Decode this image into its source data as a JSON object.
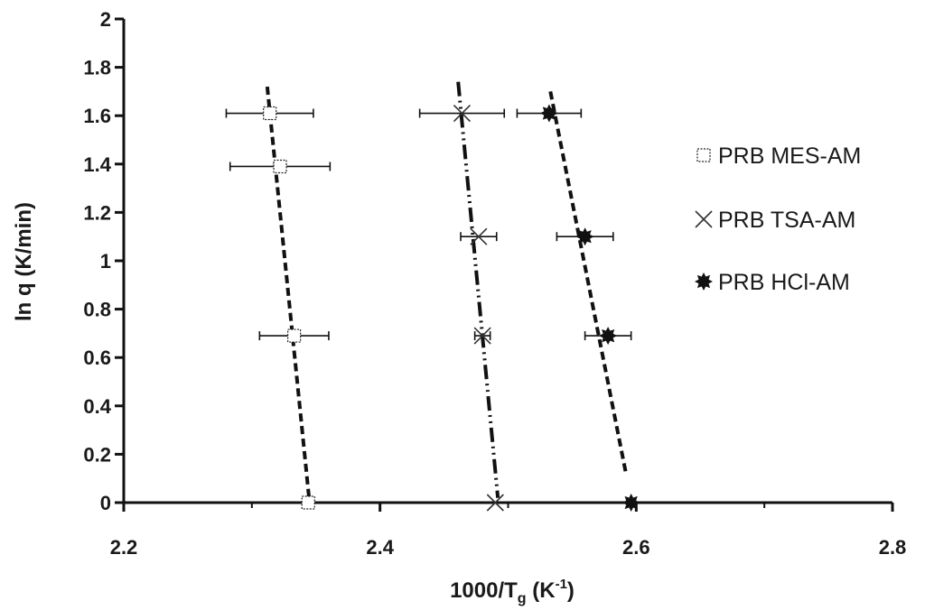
{
  "chart_data": {
    "type": "scatter",
    "xlabel_main": "1000/T",
    "xlabel_sub": "g",
    "xlabel_unit_open": " (K",
    "xlabel_unit_sup": "-1",
    "xlabel_unit_close": ")",
    "ylabel": "ln q (K/min)",
    "xlim": [
      2.2,
      2.8
    ],
    "ylim": [
      0,
      2
    ],
    "x_ticks": [
      "2.2",
      "2.4",
      "2.6",
      "2.8"
    ],
    "y_ticks": [
      "0",
      "0.2",
      "0.4",
      "0.6",
      "0.8",
      "1",
      "1.2",
      "1.4",
      "1.6",
      "1.8",
      "2"
    ],
    "grid": false,
    "legend_position": "right",
    "series": [
      {
        "name": "PRB MES-AM",
        "marker": "open-square",
        "color": "#222222",
        "line_style": "dashed",
        "points": [
          {
            "x": 2.314,
            "y": 1.61,
            "xerr": 0.034
          },
          {
            "x": 2.322,
            "y": 1.39,
            "xerr": 0.039
          },
          {
            "x": 2.333,
            "y": 0.69,
            "xerr": 0.027
          },
          {
            "x": 2.344,
            "y": 0.0,
            "xerr": 0
          }
        ],
        "trendline": [
          [
            2.312,
            1.72
          ],
          [
            2.345,
            0.0
          ]
        ]
      },
      {
        "name": "PRB TSA-AM",
        "marker": "x",
        "color": "#333333",
        "line_style": "dash-dot-dot",
        "points": [
          {
            "x": 2.464,
            "y": 1.61,
            "xerr": 0.033
          },
          {
            "x": 2.477,
            "y": 1.1,
            "xerr": 0.014
          },
          {
            "x": 2.48,
            "y": 0.69,
            "xerr": 0.006
          },
          {
            "x": 2.49,
            "y": 0.0,
            "xerr": 0
          }
        ],
        "trendline": [
          [
            2.461,
            1.74
          ],
          [
            2.492,
            0.02
          ]
        ]
      },
      {
        "name": "PRB HCl-AM",
        "marker": "filled-star",
        "color": "#111111",
        "line_style": "dashed",
        "points": [
          {
            "x": 2.532,
            "y": 1.61,
            "xerr": 0.025
          },
          {
            "x": 2.56,
            "y": 1.1,
            "xerr": 0.022
          },
          {
            "x": 2.578,
            "y": 0.69,
            "xerr": 0.018
          },
          {
            "x": 2.596,
            "y": 0.0,
            "xerr": 0
          }
        ],
        "trendline": [
          [
            2.533,
            1.7
          ],
          [
            2.592,
            0.12
          ]
        ]
      }
    ]
  }
}
